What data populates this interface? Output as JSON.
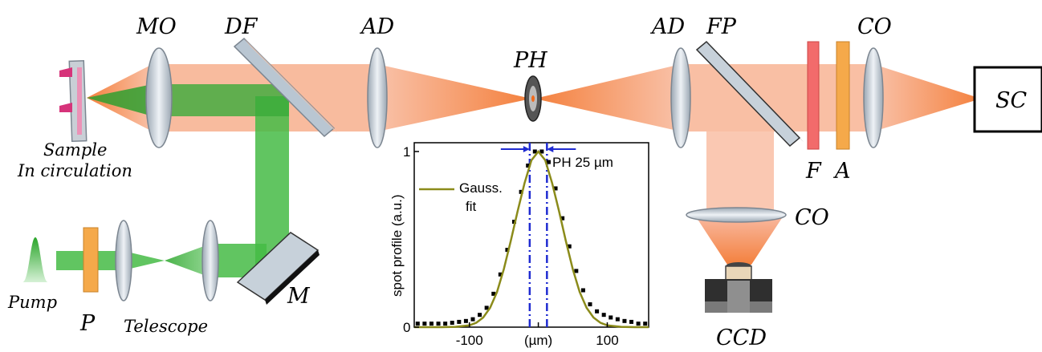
{
  "labels": {
    "mo": "MO",
    "df": "DF",
    "ad_left": "AD",
    "ph": "PH",
    "ad_right": "AD",
    "fp": "FP",
    "co_top": "CO",
    "sc": "SC",
    "f": "F",
    "a": "A",
    "co_side": "CO",
    "ccd": "CCD",
    "sample_line1": "Sample",
    "sample_line2": "In circulation",
    "pump": "Pump",
    "p": "P",
    "telescope": "Telescope",
    "m": "M"
  },
  "colors": {
    "pump_beam": "#3cb93c",
    "emission_beam": "#f6a47e",
    "emission_focus": "#f26a1b",
    "lens": "#cdd6df",
    "filter_red": "#f26b6b",
    "filter_orange": "#f5a94a",
    "fit_curve": "#8b8b1a",
    "marker_lines": "#1f2bd1"
  },
  "chart_data": {
    "type": "line",
    "xlabel": "(µm)",
    "ylabel": "spot profile (a.u.)",
    "xlim": [
      -180,
      160
    ],
    "ylim": [
      0,
      1.05
    ],
    "xticks": [
      -100,
      0,
      100
    ],
    "xtick_labels": [
      "-100",
      "(µm)",
      "100"
    ],
    "yticks": [
      0,
      1
    ],
    "legend": "Gauss.\nfit",
    "legend_line1": "Gauss.",
    "legend_line2": "fit",
    "annotation": "PH 25 µm",
    "markers_x": [
      -12.5,
      12.5
    ],
    "series": [
      {
        "name": "Gauss. fit",
        "kind": "line",
        "x": [
          -180,
          -160,
          -140,
          -120,
          -100,
          -90,
          -80,
          -70,
          -60,
          -50,
          -40,
          -30,
          -20,
          -10,
          0,
          10,
          20,
          30,
          40,
          50,
          60,
          70,
          80,
          90,
          100,
          120,
          140,
          160
        ],
        "y": [
          0.0,
          0.0,
          0.0,
          0.002,
          0.01,
          0.025,
          0.055,
          0.11,
          0.2,
          0.33,
          0.49,
          0.66,
          0.82,
          0.95,
          1.0,
          0.95,
          0.82,
          0.66,
          0.49,
          0.33,
          0.2,
          0.11,
          0.055,
          0.025,
          0.01,
          0.002,
          0.0,
          0.0
        ]
      },
      {
        "name": "data",
        "kind": "points",
        "x": [
          -175,
          -165,
          -155,
          -145,
          -135,
          -125,
          -115,
          -105,
          -95,
          -85,
          -75,
          -65,
          -55,
          -45,
          -35,
          -25,
          -15,
          -5,
          5,
          15,
          25,
          35,
          45,
          55,
          65,
          75,
          85,
          95,
          105,
          115,
          125,
          135,
          145,
          155
        ],
        "y": [
          0.02,
          0.02,
          0.02,
          0.02,
          0.02,
          0.025,
          0.03,
          0.035,
          0.045,
          0.07,
          0.11,
          0.19,
          0.3,
          0.44,
          0.6,
          0.77,
          0.92,
          1.0,
          1.0,
          0.94,
          0.79,
          0.62,
          0.46,
          0.32,
          0.21,
          0.13,
          0.09,
          0.07,
          0.055,
          0.045,
          0.035,
          0.03,
          0.02,
          0.02
        ]
      }
    ]
  }
}
